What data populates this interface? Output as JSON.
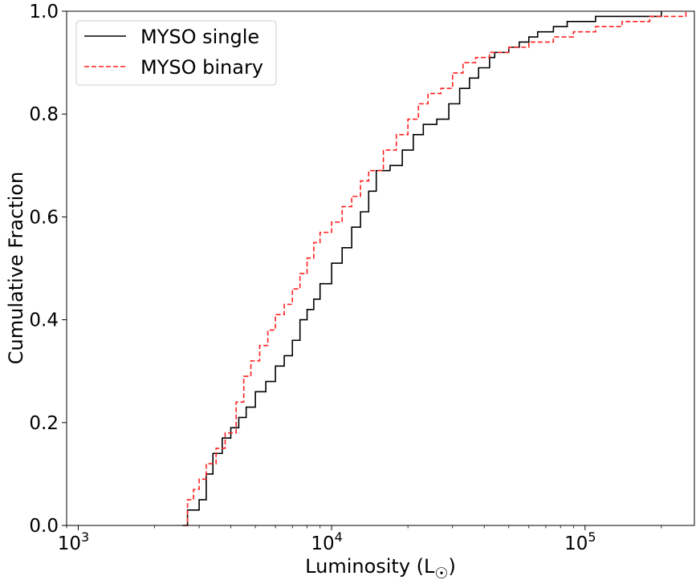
{
  "chart_data": {
    "type": "line",
    "title": "",
    "xlabel": "Luminosity (L",
    "xlabel_symbol": "☉",
    "xlabel_close": ")",
    "ylabel": "Cumulative Fraction",
    "xscale": "log",
    "xlim": [
      900,
      270000
    ],
    "ylim": [
      0,
      1
    ],
    "grid": false,
    "legend_position": "top-left",
    "x_ticks": [
      {
        "value": 1000,
        "base": "10",
        "exp": "3"
      },
      {
        "value": 10000,
        "base": "10",
        "exp": "4"
      },
      {
        "value": 100000,
        "base": "10",
        "exp": "5"
      }
    ],
    "y_ticks": [
      {
        "value": 0.0,
        "label": "0.0"
      },
      {
        "value": 0.2,
        "label": "0.2"
      },
      {
        "value": 0.4,
        "label": "0.4"
      },
      {
        "value": 0.6,
        "label": "0.6"
      },
      {
        "value": 0.8,
        "label": "0.8"
      },
      {
        "value": 1.0,
        "label": "1.0"
      }
    ],
    "series": [
      {
        "name": "MYSO single",
        "color": "#000000",
        "style": "solid",
        "x": [
          2580,
          2700,
          3000,
          3200,
          3400,
          3700,
          4000,
          4300,
          4600,
          5000,
          5500,
          6000,
          6500,
          7000,
          7500,
          8000,
          8500,
          9000,
          10000,
          11000,
          12000,
          13000,
          14000,
          15000,
          17000,
          19000,
          21000,
          23000,
          26000,
          29000,
          32000,
          35000,
          38000,
          42000,
          44000,
          50000,
          55000,
          60000,
          65000,
          75000,
          85000,
          95000,
          110000,
          130000,
          160000,
          200000
        ],
        "y": [
          0.0,
          0.03,
          0.05,
          0.1,
          0.14,
          0.17,
          0.19,
          0.21,
          0.23,
          0.26,
          0.28,
          0.31,
          0.33,
          0.36,
          0.4,
          0.42,
          0.44,
          0.47,
          0.51,
          0.54,
          0.58,
          0.61,
          0.65,
          0.69,
          0.7,
          0.73,
          0.76,
          0.78,
          0.79,
          0.82,
          0.85,
          0.87,
          0.89,
          0.91,
          0.92,
          0.93,
          0.94,
          0.95,
          0.96,
          0.97,
          0.98,
          0.98,
          0.99,
          0.99,
          0.99,
          1.0
        ]
      },
      {
        "name": "MYSO binary",
        "color": "#ff2020",
        "style": "dashed",
        "x": [
          2600,
          2700,
          2850,
          3000,
          3200,
          3500,
          3800,
          4200,
          4500,
          4800,
          5200,
          5600,
          6000,
          6500,
          7000,
          7500,
          8000,
          8500,
          9000,
          10000,
          11000,
          12000,
          13000,
          14000,
          16000,
          18000,
          20000,
          22000,
          24000,
          27000,
          30000,
          33000,
          37000,
          42000,
          50000,
          60000,
          75000,
          90000,
          110000,
          140000,
          180000,
          250000
        ],
        "y": [
          0.0,
          0.05,
          0.07,
          0.09,
          0.12,
          0.15,
          0.18,
          0.24,
          0.29,
          0.32,
          0.35,
          0.38,
          0.41,
          0.43,
          0.46,
          0.49,
          0.52,
          0.55,
          0.57,
          0.59,
          0.62,
          0.64,
          0.67,
          0.69,
          0.73,
          0.76,
          0.79,
          0.82,
          0.84,
          0.85,
          0.88,
          0.9,
          0.91,
          0.92,
          0.93,
          0.94,
          0.95,
          0.96,
          0.97,
          0.98,
          0.99,
          1.0
        ]
      }
    ]
  }
}
